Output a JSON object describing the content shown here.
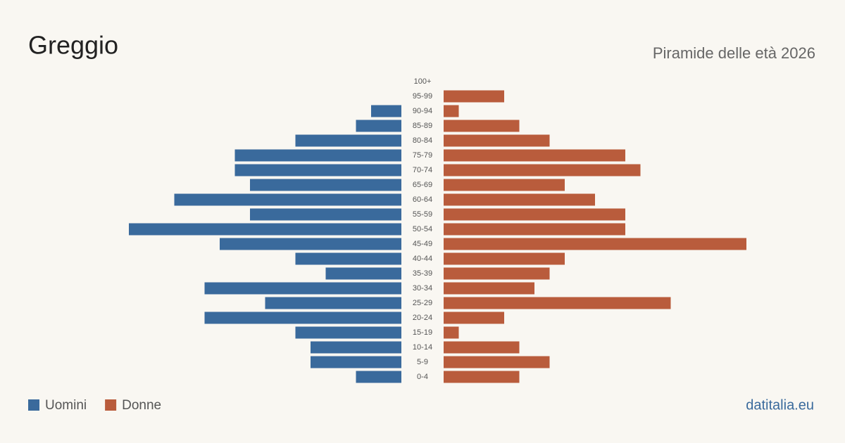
{
  "chart_data": {
    "type": "pyramid",
    "title": "Greggio",
    "subtitle": "Piramide delle età 2026",
    "source": "datitalia.eu",
    "categories": [
      "100+",
      "95-99",
      "90-94",
      "85-89",
      "80-84",
      "75-79",
      "70-74",
      "65-69",
      "60-64",
      "55-59",
      "50-54",
      "45-49",
      "40-44",
      "35-39",
      "30-34",
      "25-29",
      "20-24",
      "15-19",
      "10-14",
      "5-9",
      "0-4"
    ],
    "series": [
      {
        "name": "Uomini",
        "color": "#3a6a9c",
        "values": [
          0,
          0,
          2,
          3,
          7,
          11,
          11,
          10,
          15,
          10,
          18,
          12,
          7,
          5,
          13,
          9,
          13,
          7,
          6,
          6,
          3
        ]
      },
      {
        "name": "Donne",
        "color": "#b95c3c",
        "values": [
          0,
          4,
          1,
          5,
          7,
          12,
          13,
          8,
          10,
          12,
          12,
          20,
          8,
          7,
          6,
          15,
          4,
          1,
          5,
          7,
          5
        ]
      }
    ]
  }
}
